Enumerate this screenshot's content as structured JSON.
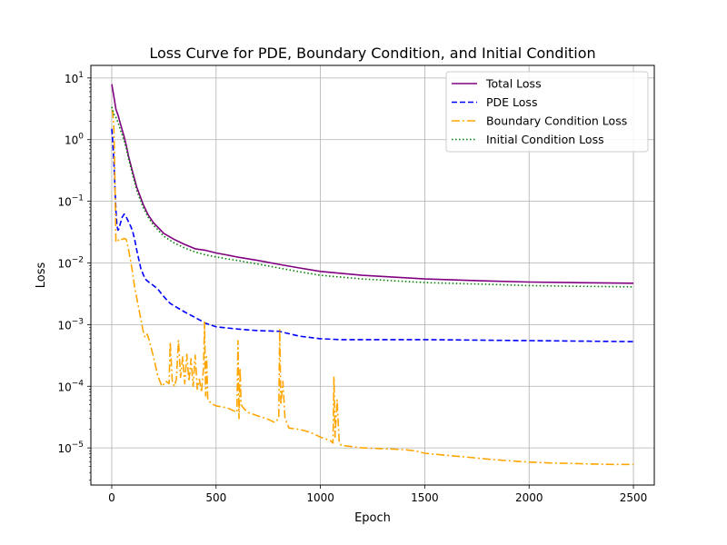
{
  "chart_data": {
    "type": "line",
    "title": "Loss Curve for PDE, Boundary Condition, and Initial Condition",
    "xlabel": "Epoch",
    "ylabel": "Loss",
    "xlim": [
      -100,
      2600
    ],
    "ylim": [
      2.5e-06,
      16
    ],
    "yscale": "log",
    "grid": true,
    "legend_position": "top-right",
    "x_ticks": [
      0,
      500,
      1000,
      1500,
      2000,
      2500
    ],
    "x_tick_labels": [
      "0",
      "500",
      "1000",
      "1500",
      "2000",
      "2500"
    ],
    "y_ticks": [
      1e-05,
      0.0001,
      0.001,
      0.01,
      0.1,
      1,
      10
    ],
    "y_tick_labels": [
      {
        "base": "10",
        "exp": "−5"
      },
      {
        "base": "10",
        "exp": "−4"
      },
      {
        "base": "10",
        "exp": "−3"
      },
      {
        "base": "10",
        "exp": "−2"
      },
      {
        "base": "10",
        "exp": "−1"
      },
      {
        "base": "10",
        "exp": "0"
      },
      {
        "base": "10",
        "exp": "1"
      }
    ],
    "series": [
      {
        "name": "Total Loss",
        "color": "#800080",
        "style": "solid",
        "x": [
          0,
          10,
          20,
          30,
          40,
          50,
          60,
          70,
          80,
          100,
          120,
          150,
          175,
          200,
          250,
          300,
          350,
          400,
          450,
          500,
          550,
          600,
          700,
          800,
          900,
          1000,
          1200,
          1500,
          1800,
          2000,
          2200,
          2500
        ],
        "y": [
          7.9,
          5.0,
          3.1,
          2.5,
          1.9,
          1.45,
          1.1,
          0.8,
          0.55,
          0.3,
          0.17,
          0.09,
          0.06,
          0.045,
          0.03,
          0.024,
          0.02,
          0.017,
          0.016,
          0.0145,
          0.0135,
          0.0125,
          0.011,
          0.0095,
          0.0083,
          0.0073,
          0.0063,
          0.0055,
          0.0051,
          0.0049,
          0.0048,
          0.0047
        ]
      },
      {
        "name": "PDE Loss",
        "color": "#0000ff",
        "style": "dashed",
        "x": [
          0,
          5,
          10,
          15,
          20,
          25,
          30,
          35,
          40,
          50,
          60,
          70,
          80,
          90,
          100,
          110,
          120,
          140,
          160,
          180,
          200,
          220,
          240,
          260,
          280,
          300,
          350,
          400,
          450,
          500,
          600,
          700,
          800,
          900,
          1000,
          1100,
          1500,
          2000,
          2500
        ],
        "y": [
          1.5,
          0.9,
          0.45,
          0.18,
          0.07,
          0.04,
          0.034,
          0.036,
          0.042,
          0.055,
          0.062,
          0.055,
          0.047,
          0.04,
          0.033,
          0.024,
          0.016,
          0.008,
          0.0055,
          0.0048,
          0.0043,
          0.0038,
          0.0031,
          0.0026,
          0.0022,
          0.002,
          0.0016,
          0.0013,
          0.00105,
          0.00092,
          0.00085,
          0.0008,
          0.00078,
          0.00065,
          0.00059,
          0.00057,
          0.00057,
          0.00055,
          0.00053
        ]
      },
      {
        "name": "Boundary Condition Loss",
        "color": "#ffa500",
        "style": "dashdot",
        "x": [
          0,
          5,
          10,
          15,
          20,
          25,
          30,
          40,
          50,
          60,
          70,
          80,
          90,
          100,
          110,
          120,
          140,
          150,
          160,
          170,
          180,
          200,
          220,
          240,
          260,
          275,
          280,
          290,
          300,
          310,
          320,
          330,
          340,
          350,
          360,
          370,
          380,
          390,
          400,
          410,
          420,
          430,
          440,
          445,
          450,
          455,
          460,
          480,
          500,
          550,
          600,
          605,
          610,
          615,
          620,
          630,
          650,
          700,
          750,
          780,
          800,
          805,
          810,
          820,
          830,
          850,
          900,
          950,
          1000,
          1050,
          1060,
          1065,
          1070,
          1080,
          1090,
          1100,
          1150,
          1200,
          1300,
          1400,
          1450,
          1500,
          1600,
          1700,
          1800,
          1900,
          2000,
          2100,
          2200,
          2300,
          2400,
          2500
        ],
        "y": [
          3.0,
          2.8,
          1.5,
          0.25,
          0.022,
          0.022,
          0.023,
          0.025,
          0.024,
          0.025,
          0.024,
          0.017,
          0.011,
          0.007,
          0.004,
          0.0027,
          0.0012,
          0.0008,
          0.00062,
          0.0007,
          0.00055,
          0.0003,
          0.00015,
          0.0001,
          0.00012,
          0.00011,
          0.00052,
          0.00012,
          0.0001,
          0.00013,
          0.00055,
          0.00014,
          0.0003,
          0.00011,
          0.00033,
          0.00012,
          0.00028,
          0.0001,
          0.00032,
          9e-05,
          0.00013,
          8e-05,
          0.0002,
          0.0011,
          7e-05,
          0.0003,
          6e-05,
          5.2e-05,
          4.8e-05,
          4.5e-05,
          3.8e-05,
          0.00055,
          3e-05,
          0.0002,
          5e-05,
          4.5e-05,
          3.8e-05,
          3.3e-05,
          2.9e-05,
          2.6e-05,
          3e-05,
          0.00085,
          5e-05,
          0.00012,
          3e-05,
          2.1e-05,
          2e-05,
          1.8e-05,
          1.5e-05,
          1.3e-05,
          1.2e-05,
          0.00014,
          1.5e-05,
          6e-05,
          1.2e-05,
          1.1e-05,
          1.05e-05,
          1e-05,
          9.7e-06,
          9.4e-06,
          9e-06,
          8.2e-06,
          7.6e-06,
          7.1e-06,
          6.6e-06,
          6.2e-06,
          5.9e-06,
          5.7e-06,
          5.6e-06,
          5.5e-06,
          5.4e-06,
          5.4e-06
        ]
      },
      {
        "name": "Initial Condition Loss",
        "color": "#008000",
        "style": "dotted",
        "x": [
          0,
          10,
          20,
          30,
          40,
          50,
          60,
          70,
          80,
          100,
          120,
          150,
          175,
          200,
          250,
          300,
          350,
          400,
          450,
          500,
          550,
          600,
          700,
          800,
          900,
          1000,
          1200,
          1500,
          1800,
          2000,
          2200,
          2500
        ],
        "y": [
          3.4,
          2.6,
          2.3,
          1.9,
          1.5,
          1.2,
          0.95,
          0.72,
          0.5,
          0.27,
          0.15,
          0.08,
          0.055,
          0.041,
          0.027,
          0.021,
          0.0175,
          0.015,
          0.0135,
          0.0125,
          0.0117,
          0.011,
          0.0096,
          0.0083,
          0.0072,
          0.0063,
          0.0055,
          0.0048,
          0.0045,
          0.0043,
          0.0042,
          0.0041
        ]
      }
    ]
  }
}
